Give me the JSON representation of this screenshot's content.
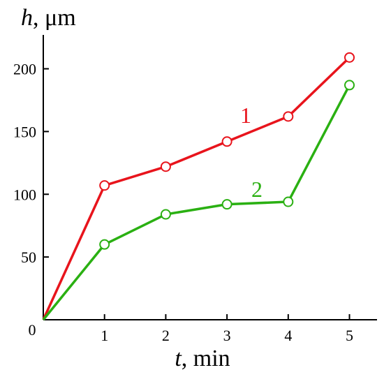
{
  "chart_data": {
    "type": "line",
    "title": "",
    "x_axis": {
      "variable": "t",
      "unit": ", min",
      "ticks": [
        1,
        2,
        3,
        4,
        5
      ],
      "range": [
        0,
        5.45
      ]
    },
    "y_axis": {
      "variable": "h",
      "unit": ", μm",
      "ticks": [
        50,
        100,
        150,
        200
      ],
      "range": [
        0,
        227
      ]
    },
    "origin_label": "0",
    "grid": false,
    "marker": "open-circle",
    "series": [
      {
        "name": "1",
        "color": "#e8141c",
        "x": [
          0,
          1,
          2,
          3,
          4,
          5
        ],
        "y": [
          0,
          107,
          122,
          142,
          162,
          209
        ]
      },
      {
        "name": "2",
        "color": "#2ab012",
        "x": [
          0,
          1,
          2,
          3,
          4,
          5
        ],
        "y": [
          0,
          60,
          84,
          92,
          94,
          187
        ]
      }
    ]
  }
}
